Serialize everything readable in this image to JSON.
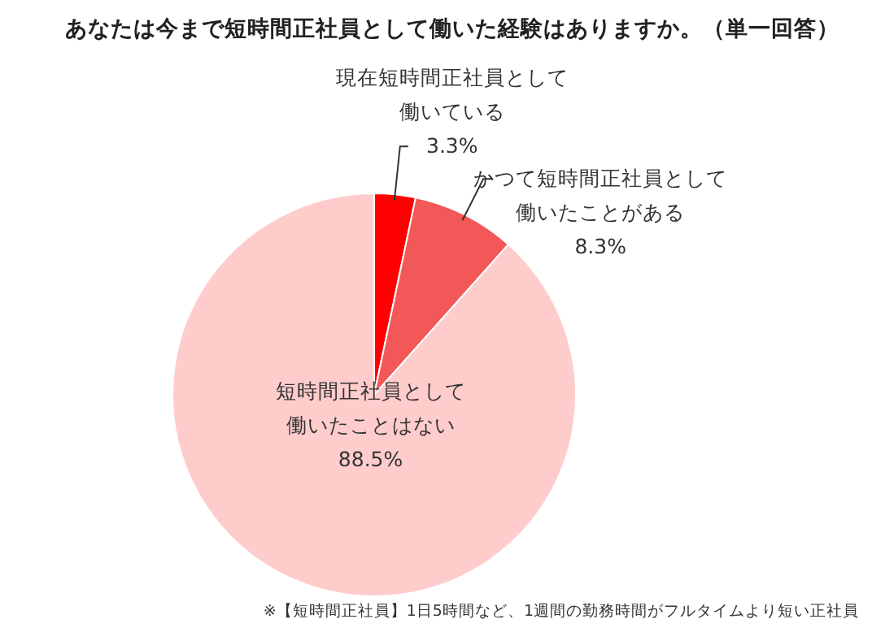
{
  "chart_data": {
    "type": "pie",
    "title": "あなたは今まで短時間正社員として働いた経験はありますか。（単一回答）",
    "categories": [
      "現在短時間正社員として働いている",
      "かつて短時間正社員として働いたことがある",
      "短時間正社員として働いたことはない"
    ],
    "values": [
      3.3,
      8.3,
      88.5
    ],
    "colors": [
      "#ff0000",
      "#f25858",
      "#ffcccc"
    ],
    "value_labels": [
      "3.3%",
      "8.3%",
      "88.5%"
    ],
    "annotations": [
      "※【短時間正社員】1日5時間など、1週間の勤務時間がフルタイムより短い正社員"
    ]
  }
}
